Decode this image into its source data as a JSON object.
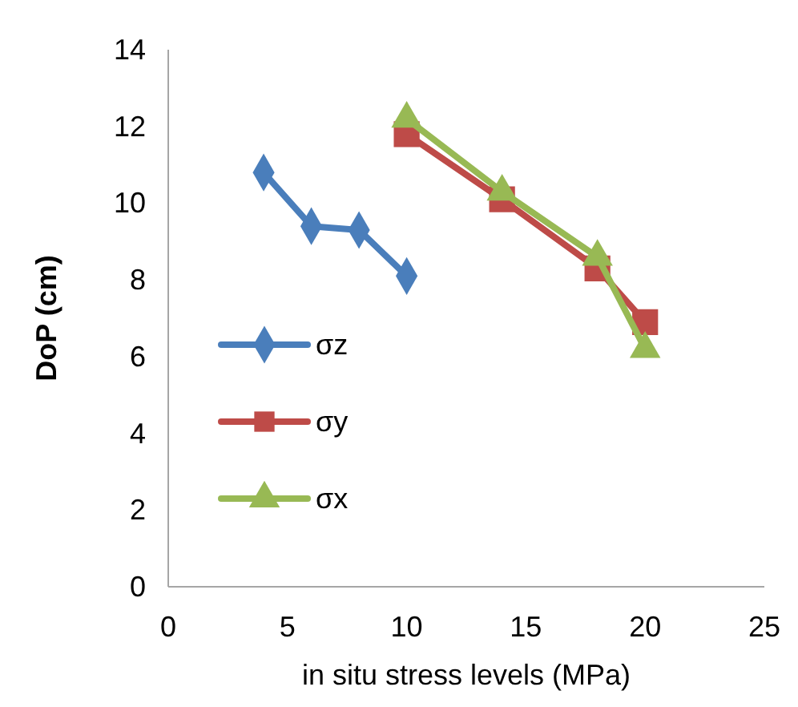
{
  "chart_data": {
    "type": "line",
    "xlabel": "in situ stress levels (MPa)",
    "ylabel": "DoP (cm)",
    "xlim": [
      0,
      25
    ],
    "xticks": [
      0,
      5,
      10,
      15,
      20,
      25
    ],
    "ylim": [
      0,
      14
    ],
    "yticks": [
      0,
      2,
      4,
      6,
      8,
      10,
      12,
      14
    ],
    "grid": false,
    "legend": "left",
    "series": [
      {
        "name": "σz",
        "color": "#4a7ebb",
        "marker": "diamond",
        "x": [
          4,
          6,
          8,
          10
        ],
        "values": [
          10.8,
          9.4,
          9.3,
          8.1
        ]
      },
      {
        "name": "σy",
        "color": "#be4b48",
        "marker": "square",
        "x": [
          10,
          14,
          18,
          20
        ],
        "values": [
          11.8,
          10.1,
          8.3,
          6.9
        ]
      },
      {
        "name": "σx",
        "color": "#98b954",
        "marker": "triangle",
        "x": [
          10,
          14,
          18,
          20
        ],
        "values": [
          12.2,
          10.3,
          8.6,
          6.2
        ]
      }
    ]
  }
}
